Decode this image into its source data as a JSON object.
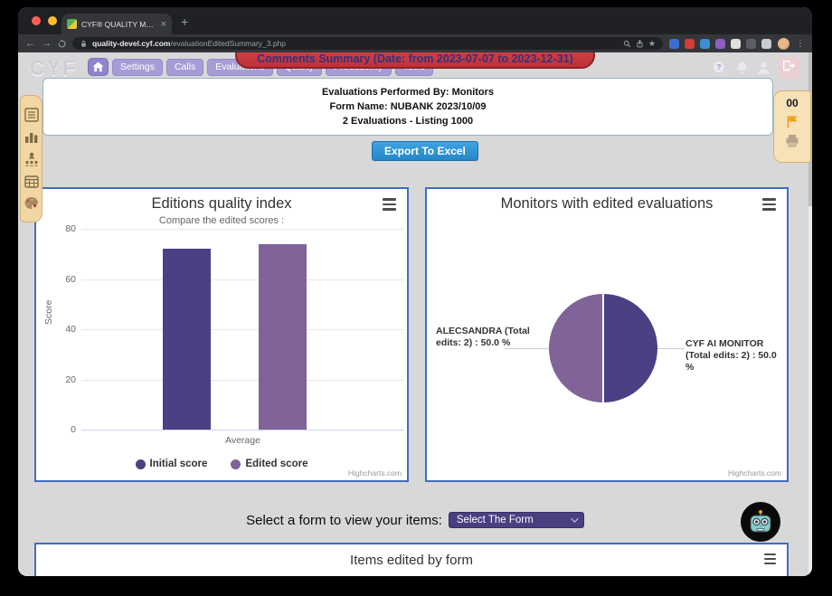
{
  "browser": {
    "tab_title": "CYF® QUALITY MANAGEMEN",
    "close_glyph": "×",
    "new_tab_glyph": "+",
    "back_glyph": "←",
    "forward_glyph": "→",
    "star_glyph": "★",
    "menu_glyph": "⋮",
    "url_domain": "quality-devel.cyf.com",
    "url_path": "/evaluationEditedSummary_3.php",
    "extensions": [
      {
        "name": "password-extension-icon",
        "color": "#3b6fd4"
      },
      {
        "name": "screen-extension-icon",
        "color": "#d43b3b"
      },
      {
        "name": "timer-extension-icon",
        "color": "#3b8fd4"
      },
      {
        "name": "notes-extension-icon",
        "color": "#8a5fc0"
      },
      {
        "name": "colorwheel-extension-icon",
        "color": "#e0e0e0"
      },
      {
        "name": "puzzle-extension-icon",
        "color": "#5a5d62"
      },
      {
        "name": "reader-extension-icon",
        "color": "#caccd0"
      }
    ]
  },
  "banner": {
    "title": "Comments Summary (Date: from 2023-07-07 to 2023-12-31)"
  },
  "nav": {
    "logo": "CYF",
    "items": [
      "Settings",
      "Calls",
      "Evaluations",
      "Quality",
      "Productivity",
      "Tools"
    ]
  },
  "summary": {
    "line1": "Evaluations Performed By: Monitors",
    "line2": "Form Name: NUBANK 2023/10/09",
    "line3": "2 Evaluations - Listing 1000",
    "export_label": "Export To Excel"
  },
  "side_right": {
    "badge": "00"
  },
  "chart_data": [
    {
      "type": "bar",
      "title": "Editions quality index",
      "subtitle": "Compare the edited scores :",
      "categories": [
        "Average"
      ],
      "series": [
        {
          "name": "Initial score",
          "color": "#4b4083",
          "values": [
            72
          ]
        },
        {
          "name": "Edited score",
          "color": "#7f6399",
          "values": [
            74
          ]
        }
      ],
      "xlabel": "Average",
      "ylabel": "Score",
      "ylim": [
        0,
        80
      ],
      "yticks": [
        0,
        20,
        40,
        60,
        80
      ],
      "grid": true,
      "legend_position": "bottom"
    },
    {
      "type": "pie",
      "title": "Monitors with edited evaluations",
      "slices": [
        {
          "label": "ALECSANDRA",
          "total_edits": 2,
          "percent": 50.0,
          "color": "#7f6399",
          "display": "ALECSANDRA (Total edits: 2) : 50.0 %",
          "side": "left"
        },
        {
          "label": "CYF AI MONITOR",
          "total_edits": 2,
          "percent": 50.0,
          "color": "#4b4083",
          "display": "CYF AI MONITOR (Total edits: 2) : 50.0 %",
          "side": "right"
        }
      ]
    }
  ],
  "credits": "Highcharts.com",
  "form_select": {
    "label": "Select a form to view your items:",
    "value": "Select The Form"
  },
  "items_section": {
    "title": "Items edited by form"
  }
}
